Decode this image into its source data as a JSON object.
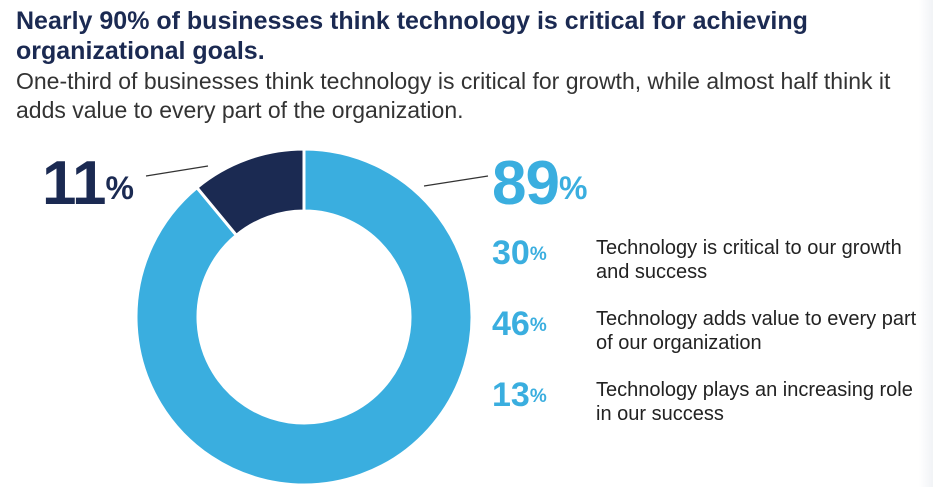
{
  "colors": {
    "title": "#1b2a52",
    "primary": "#3aaedf",
    "secondary": "#1b2a52",
    "leader_line": "#333333",
    "slice_border": "#ffffff"
  },
  "chart_data": {
    "type": "pie",
    "variant": "donut",
    "title": "Nearly 90% of businesses think technology is critical for achieving organizational goals.",
    "subtitle": "One-third of businesses think technology is critical for growth, while almost half think it adds value to every part of the organization.",
    "slices": [
      {
        "value": 89,
        "label": "89",
        "unit": "%",
        "color": "#3aaedf"
      },
      {
        "value": 11,
        "label": "11",
        "unit": "%",
        "color": "#1b2a52"
      }
    ],
    "breakdown": [
      {
        "value": 30,
        "label": "30",
        "unit": "%",
        "text": "Technology is critical to our growth and success"
      },
      {
        "value": 46,
        "label": "46",
        "unit": "%",
        "text": "Technology adds value to every part of our organization"
      },
      {
        "value": 13,
        "label": "13",
        "unit": "%",
        "text": "Technology plays an increasing role in our success"
      }
    ]
  }
}
